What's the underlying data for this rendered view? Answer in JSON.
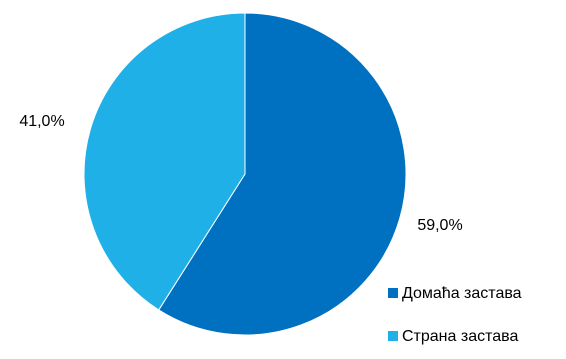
{
  "chart_data": {
    "type": "pie",
    "title": "",
    "start_angle_deg": 0,
    "direction": "clockwise",
    "slices": [
      {
        "name": "Домаћа застава",
        "value": 59.0,
        "label": "59,0%",
        "color": "#0070C0"
      },
      {
        "name": "Страна застава",
        "value": 41.0,
        "label": "41,0%",
        "color": "#20B0E8"
      }
    ],
    "legend": {
      "placement": "bottom-right",
      "entries": [
        "Домаћа застава",
        "Страна застава"
      ]
    }
  }
}
